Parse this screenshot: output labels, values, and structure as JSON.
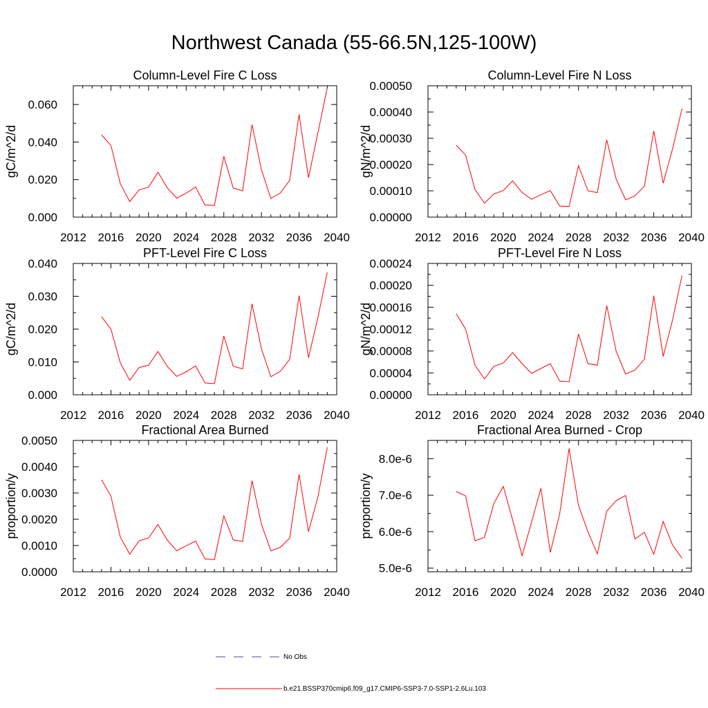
{
  "title": "Northwest Canada (55-66.5N,125-100W)",
  "legend": [
    {
      "label": "No Obs",
      "color": "#4444aa",
      "style": "dashed"
    },
    {
      "label": "b.e21.BSSP370cmip6.f09_g17.CMIP6-SSP3-7.0-SSP1-2.6Lu.103",
      "color": "#ff0000",
      "style": "solid"
    }
  ],
  "chart_data": [
    {
      "type": "line",
      "title": "Column-Level Fire C Loss",
      "ylabel": "gC/m^2/d",
      "xlim": [
        2012,
        2040
      ],
      "xticks": [
        "2012",
        "2016",
        "2020",
        "2024",
        "2028",
        "2032",
        "2036",
        "2040"
      ],
      "ylim": [
        0,
        0.07
      ],
      "yticks": [
        "0.000",
        "0.020",
        "0.040",
        "0.060"
      ],
      "color": "#ff0000",
      "x": [
        2015,
        2016,
        2017,
        2018,
        2019,
        2020,
        2021,
        2022,
        2023,
        2024,
        2025,
        2026,
        2027,
        2028,
        2029,
        2030,
        2031,
        2032,
        2033,
        2034,
        2035,
        2036,
        2037,
        2038,
        2039
      ],
      "values": [
        0.0438,
        0.0382,
        0.0178,
        0.0082,
        0.0145,
        0.016,
        0.0239,
        0.0155,
        0.0101,
        0.0128,
        0.016,
        0.0065,
        0.0062,
        0.0324,
        0.0155,
        0.014,
        0.0493,
        0.0252,
        0.0099,
        0.0128,
        0.0196,
        0.0547,
        0.021,
        0.0449,
        0.0691
      ]
    },
    {
      "type": "line",
      "title": "Column-Level Fire N Loss",
      "ylabel": "gN/m^2/d",
      "xlim": [
        2012,
        2040
      ],
      "xticks": [
        "2012",
        "2016",
        "2020",
        "2024",
        "2028",
        "2032",
        "2036",
        "2040"
      ],
      "ylim": [
        0,
        0.0005
      ],
      "yticks": [
        "0.00000",
        "0.00010",
        "0.00020",
        "0.00030",
        "0.00040",
        "0.00050"
      ],
      "color": "#ff0000",
      "x": [
        2015,
        2016,
        2017,
        2018,
        2019,
        2020,
        2021,
        2022,
        2023,
        2024,
        2025,
        2026,
        2027,
        2028,
        2029,
        2030,
        2031,
        2032,
        2033,
        2034,
        2035,
        2036,
        2037,
        2038,
        2039
      ],
      "values": [
        0.000274,
        0.000236,
        0.000105,
        5.3e-05,
        8.8e-05,
        0.000101,
        0.000138,
        9.4e-05,
        6.8e-05,
        8.5e-05,
        0.000101,
        4.2e-05,
        4e-05,
        0.000196,
        0.0001,
        9.3e-05,
        0.000294,
        0.000145,
        6.6e-05,
        8.1e-05,
        0.000117,
        0.000328,
        0.000129,
        0.00026,
        0.000413
      ]
    },
    {
      "type": "line",
      "title": "PFT-Level Fire C Loss",
      "ylabel": "gC/m^2/d",
      "xlim": [
        2012,
        2040
      ],
      "xticks": [
        "2012",
        "2016",
        "2020",
        "2024",
        "2028",
        "2032",
        "2036",
        "2040"
      ],
      "ylim": [
        0,
        0.04
      ],
      "yticks": [
        "0.000",
        "0.010",
        "0.020",
        "0.030",
        "0.040"
      ],
      "color": "#ff0000",
      "x": [
        2015,
        2016,
        2017,
        2018,
        2019,
        2020,
        2021,
        2022,
        2023,
        2024,
        2025,
        2026,
        2027,
        2028,
        2029,
        2030,
        2031,
        2032,
        2033,
        2034,
        2035,
        2036,
        2037,
        2038,
        2039
      ],
      "values": [
        0.0238,
        0.02,
        0.0097,
        0.0044,
        0.0083,
        0.009,
        0.0132,
        0.0086,
        0.0056,
        0.007,
        0.0088,
        0.0036,
        0.0034,
        0.0179,
        0.0087,
        0.0079,
        0.0277,
        0.014,
        0.0055,
        0.0071,
        0.0108,
        0.0302,
        0.0113,
        0.0235,
        0.0373
      ]
    },
    {
      "type": "line",
      "title": "PFT-Level Fire N Loss",
      "ylabel": "gN/m^2/d",
      "xlim": [
        2012,
        2040
      ],
      "xticks": [
        "2012",
        "2016",
        "2020",
        "2024",
        "2028",
        "2032",
        "2036",
        "2040"
      ],
      "ylim": [
        0,
        0.00024
      ],
      "yticks": [
        "0.00000",
        "0.00004",
        "0.00008",
        "0.00012",
        "0.00016",
        "0.00020",
        "0.00024"
      ],
      "color": "#ff0000",
      "x": [
        2015,
        2016,
        2017,
        2018,
        2019,
        2020,
        2021,
        2022,
        2023,
        2024,
        2025,
        2026,
        2027,
        2028,
        2029,
        2030,
        2031,
        2032,
        2033,
        2034,
        2035,
        2036,
        2037,
        2038,
        2039
      ],
      "values": [
        0.000148,
        0.00012,
        5.4e-05,
        2.9e-05,
        5.2e-05,
        5.8e-05,
        7.7e-05,
        5.7e-05,
        3.9e-05,
        4.8e-05,
        5.7e-05,
        2.5e-05,
        2.4e-05,
        0.000111,
        5.7e-05,
        5.4e-05,
        0.000163,
        8e-05,
        3.8e-05,
        4.5e-05,
        6.5e-05,
        0.000181,
        7e-05,
        0.000137,
        0.000218
      ]
    },
    {
      "type": "line",
      "title": "Fractional Area Burned",
      "ylabel": "proportion/y",
      "xlim": [
        2012,
        2040
      ],
      "xticks": [
        "2012",
        "2016",
        "2020",
        "2024",
        "2028",
        "2032",
        "2036",
        "2040"
      ],
      "ylim": [
        0,
        0.005
      ],
      "yticks": [
        "0.0000",
        "0.0010",
        "0.0020",
        "0.0030",
        "0.0040",
        "0.0050"
      ],
      "color": "#ff0000",
      "x": [
        2015,
        2016,
        2017,
        2018,
        2019,
        2020,
        2021,
        2022,
        2023,
        2024,
        2025,
        2026,
        2027,
        2028,
        2029,
        2030,
        2031,
        2032,
        2033,
        2034,
        2035,
        2036,
        2037,
        2038,
        2039
      ],
      "values": [
        0.0035,
        0.00288,
        0.00132,
        0.00067,
        0.00118,
        0.00129,
        0.0018,
        0.0012,
        0.0008,
        0.00099,
        0.00117,
        0.00049,
        0.00046,
        0.00213,
        0.00122,
        0.00115,
        0.00347,
        0.00181,
        0.0008,
        0.00093,
        0.00128,
        0.00371,
        0.00153,
        0.00285,
        0.00474
      ]
    },
    {
      "type": "line",
      "title": "Fractional Area Burned - Crop",
      "ylabel": "proportion/y",
      "xlim": [
        2012,
        2040
      ],
      "xticks": [
        "2012",
        "2016",
        "2020",
        "2024",
        "2028",
        "2032",
        "2036",
        "2040"
      ],
      "ylim": [
        4.9e-06,
        8.5e-06
      ],
      "yticks": [
        "5.0e-6",
        "6.0e-6",
        "7.0e-6",
        "8.0e-6"
      ],
      "yticks_values": [
        5e-06,
        6e-06,
        7e-06,
        8e-06
      ],
      "color": "#ff0000",
      "x": [
        2015,
        2016,
        2017,
        2018,
        2019,
        2020,
        2021,
        2022,
        2023,
        2024,
        2025,
        2026,
        2027,
        2028,
        2029,
        2030,
        2031,
        2032,
        2033,
        2034,
        2035,
        2036,
        2037,
        2038,
        2039
      ],
      "values": [
        7.1e-06,
        6.98e-06,
        5.75e-06,
        5.84e-06,
        6.77e-06,
        7.24e-06,
        6.32e-06,
        5.34e-06,
        6.25e-06,
        7.19e-06,
        5.43e-06,
        6.49e-06,
        8.28e-06,
        6.72e-06,
        6e-06,
        5.39e-06,
        6.56e-06,
        6.85e-06,
        6.99e-06,
        5.8e-06,
        5.98e-06,
        5.38e-06,
        6.28e-06,
        5.63e-06,
        5.27e-06
      ]
    }
  ]
}
